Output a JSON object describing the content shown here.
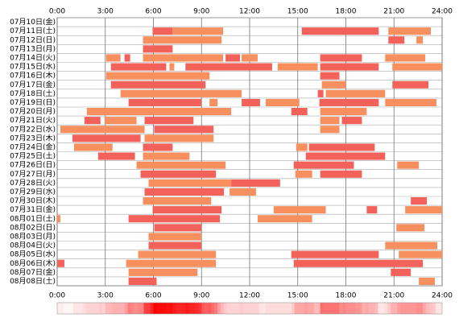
{
  "chart_data": {
    "type": "timeline",
    "xlim": [
      0,
      24
    ],
    "xticks": [
      {
        "value": 0,
        "label": "0:00"
      },
      {
        "value": 3,
        "label": "3:00"
      },
      {
        "value": 6,
        "label": "6:00"
      },
      {
        "value": 9,
        "label": "9:00"
      },
      {
        "value": 12,
        "label": "12:00"
      },
      {
        "value": 15,
        "label": "15:00"
      },
      {
        "value": 18,
        "label": "18:00"
      },
      {
        "value": 21,
        "label": "21:00"
      },
      {
        "value": 24,
        "label": "24:00"
      }
    ],
    "colors": [
      "#f7905e",
      "#f2625a"
    ],
    "grid": true,
    "rows": [
      {
        "label": "07月10日(金)",
        "segments": []
      },
      {
        "label": "07月11日(土)",
        "segments": [
          [
            5.95,
            7.2
          ],
          [
            7.2,
            10.35
          ],
          [
            15.25,
            20.05
          ],
          [
            20.65,
            23.3
          ]
        ]
      },
      {
        "label": "07月12日(日)",
        "segments": [
          [
            5.35,
            10.25
          ],
          [
            20.65,
            21.65
          ],
          [
            22.4,
            22.8
          ]
        ]
      },
      {
        "label": "07月13日(月)",
        "segments": [
          [
            5.35,
            7.2
          ]
        ]
      },
      {
        "label": "07月14日(火)",
        "segments": [
          [
            3.05,
            3.95
          ],
          [
            4.2,
            4.55
          ],
          [
            5.35,
            10.35
          ],
          [
            10.5,
            11.4
          ],
          [
            11.5,
            12.5
          ],
          [
            16.4,
            19.0
          ],
          [
            20.45,
            22.95
          ]
        ]
      },
      {
        "label": "07月15日(水)",
        "segments": [
          [
            3.35,
            6.8
          ],
          [
            7.0,
            7.3
          ],
          [
            8.0,
            13.4
          ],
          [
            13.75,
            16.25
          ],
          [
            16.4,
            20.05
          ],
          [
            20.9,
            24
          ]
        ]
      },
      {
        "label": "07月16日(木)",
        "segments": [
          [
            3.05,
            9.5
          ],
          [
            16.4,
            17.6
          ]
        ]
      },
      {
        "label": "07月17日(金)",
        "segments": [
          [
            3.35,
            9.25
          ],
          [
            16.5,
            18.0
          ],
          [
            20.9,
            23.15
          ]
        ]
      },
      {
        "label": "07月18日(土)",
        "segments": [
          [
            3.95,
            11.5
          ],
          [
            16.25,
            16.6
          ],
          [
            16.75,
            20.45
          ]
        ]
      },
      {
        "label": "07月19日(日)",
        "segments": [
          [
            4.45,
            9.0
          ],
          [
            9.5,
            10.0
          ],
          [
            11.5,
            12.65
          ],
          [
            13.0,
            15.1
          ],
          [
            16.35,
            20.05
          ],
          [
            20.45,
            23.65
          ]
        ]
      },
      {
        "label": "07月20日(月)",
        "segments": [
          [
            1.85,
            10.85
          ],
          [
            14.6,
            15.6
          ],
          [
            16.4,
            19.3
          ]
        ]
      },
      {
        "label": "07月21日(火)",
        "segments": [
          [
            1.7,
            2.7
          ],
          [
            2.95,
            4.95
          ],
          [
            5.45,
            8.5
          ],
          [
            16.4,
            17.6
          ],
          [
            17.75,
            19.0
          ]
        ]
      },
      {
        "label": "07月22日(水)",
        "segments": [
          [
            0.2,
            5.45
          ],
          [
            6.05,
            9.75
          ],
          [
            16.4,
            17.6
          ]
        ]
      },
      {
        "label": "07月23日(木)",
        "segments": [
          [
            0.95,
            5.2
          ],
          [
            5.45,
            9.75
          ]
        ]
      },
      {
        "label": "07月24日(金)",
        "segments": [
          [
            1.05,
            3.45
          ],
          [
            5.35,
            7.2
          ],
          [
            14.9,
            15.6
          ],
          [
            15.7,
            19.8
          ]
        ]
      },
      {
        "label": "07月25日(土)",
        "segments": [
          [
            2.55,
            4.85
          ],
          [
            5.35,
            8.25
          ],
          [
            15.5,
            20.45
          ]
        ]
      },
      {
        "label": "07月26日(日)",
        "segments": [
          [
            4.95,
            10.5
          ],
          [
            14.75,
            18.5
          ],
          [
            21.2,
            22.55
          ]
        ]
      },
      {
        "label": "07月27日(月)",
        "segments": [
          [
            5.2,
            9.9
          ],
          [
            14.85,
            15.9
          ],
          [
            16.4,
            19.0
          ]
        ]
      },
      {
        "label": "07月28日(火)",
        "segments": [
          [
            5.7,
            10.85
          ],
          [
            10.85,
            13.9
          ]
        ]
      },
      {
        "label": "07月29日(水)",
        "segments": [
          [
            5.45,
            10.4
          ],
          [
            10.75,
            12.4
          ]
        ]
      },
      {
        "label": "07月30日(木)",
        "segments": [
          [
            5.35,
            9.6
          ],
          [
            22.05,
            23.05
          ]
        ]
      },
      {
        "label": "07月31日(金)",
        "segments": [
          [
            5.95,
            10.25
          ],
          [
            13.5,
            16.75
          ],
          [
            19.3,
            19.95
          ],
          [
            21.7,
            24
          ]
        ]
      },
      {
        "label": "08月01日(土)",
        "segments": [
          [
            0,
            0.2
          ],
          [
            4.45,
            10.15
          ],
          [
            12.5,
            15.9
          ]
        ]
      },
      {
        "label": "08月02日(日)",
        "segments": [
          [
            6.05,
            9.0
          ],
          [
            21.15,
            22.9
          ]
        ]
      },
      {
        "label": "08月03日(月)",
        "segments": [
          [
            5.7,
            9.0
          ]
        ]
      },
      {
        "label": "08月04日(火)",
        "segments": [
          [
            5.7,
            9.0
          ],
          [
            20.45,
            23.7
          ]
        ]
      },
      {
        "label": "08月05日(水)",
        "segments": [
          [
            5.05,
            9.9
          ],
          [
            14.6,
            20.05
          ],
          [
            21.3,
            24
          ]
        ]
      },
      {
        "label": "08月06日(木)",
        "segments": [
          [
            0,
            0.45
          ],
          [
            4.3,
            9.9
          ],
          [
            14.75,
            22.8
          ]
        ]
      },
      {
        "label": "08月07日(金)",
        "segments": [
          [
            4.45,
            8.75
          ],
          [
            20.8,
            22.05
          ]
        ]
      },
      {
        "label": "08月08日(土)",
        "segments": [
          [
            4.45,
            6.2
          ],
          [
            22.55,
            23.55
          ]
        ]
      }
    ]
  }
}
